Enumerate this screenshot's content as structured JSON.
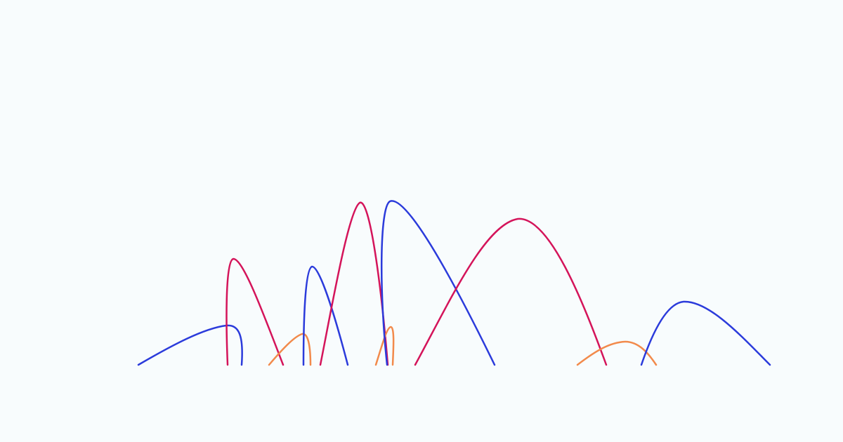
{
  "background_color": "#f8fcfd",
  "palette": {
    "blue": "#2b3bdb",
    "crimson": "#d4145a",
    "orange": "#f28a4b"
  },
  "arcs": [
    {
      "name": "arc-blue-1",
      "color": "blue"
    },
    {
      "name": "arc-crimson-1",
      "color": "crimson"
    },
    {
      "name": "arc-orange-1",
      "color": "orange"
    },
    {
      "name": "arc-blue-2",
      "color": "blue"
    },
    {
      "name": "arc-crimson-2",
      "color": "crimson"
    },
    {
      "name": "arc-orange-2",
      "color": "orange"
    },
    {
      "name": "arc-blue-3",
      "color": "blue"
    },
    {
      "name": "arc-crimson-3",
      "color": "crimson"
    },
    {
      "name": "arc-orange-3",
      "color": "orange"
    },
    {
      "name": "arc-blue-4",
      "color": "blue"
    }
  ]
}
